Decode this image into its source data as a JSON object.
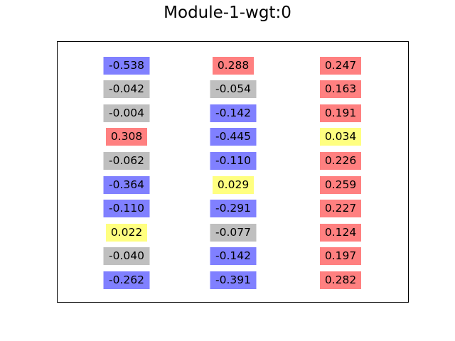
{
  "chart_data": {
    "type": "table",
    "title": "Module-1-wgt:0",
    "columns": [
      [
        "-0.538",
        "-0.042",
        "-0.004",
        "0.308",
        "-0.062",
        "-0.364",
        "-0.110",
        "0.022",
        "-0.040",
        "-0.262"
      ],
      [
        "0.288",
        "-0.054",
        "-0.142",
        "-0.445",
        "-0.110",
        "0.029",
        "-0.291",
        "-0.077",
        "-0.142",
        "-0.391"
      ],
      [
        "0.247",
        "0.163",
        "0.191",
        "0.034",
        "0.226",
        "0.259",
        "0.227",
        "0.124",
        "0.197",
        "0.282"
      ]
    ],
    "cell_colors": {
      "strong_negative": "#8080ff",
      "weak": "#bfbfbf",
      "near_zero": "#ffff80",
      "positive": "#ff8080"
    },
    "color_classes": [
      [
        "strong_negative",
        "weak",
        "weak",
        "positive",
        "weak",
        "strong_negative",
        "strong_negative",
        "near_zero",
        "weak",
        "strong_negative"
      ],
      [
        "positive",
        "weak",
        "strong_negative",
        "strong_negative",
        "strong_negative",
        "near_zero",
        "strong_negative",
        "weak",
        "strong_negative",
        "strong_negative"
      ],
      [
        "positive",
        "positive",
        "positive",
        "near_zero",
        "positive",
        "positive",
        "positive",
        "positive",
        "positive",
        "positive"
      ]
    ],
    "grid": false
  }
}
